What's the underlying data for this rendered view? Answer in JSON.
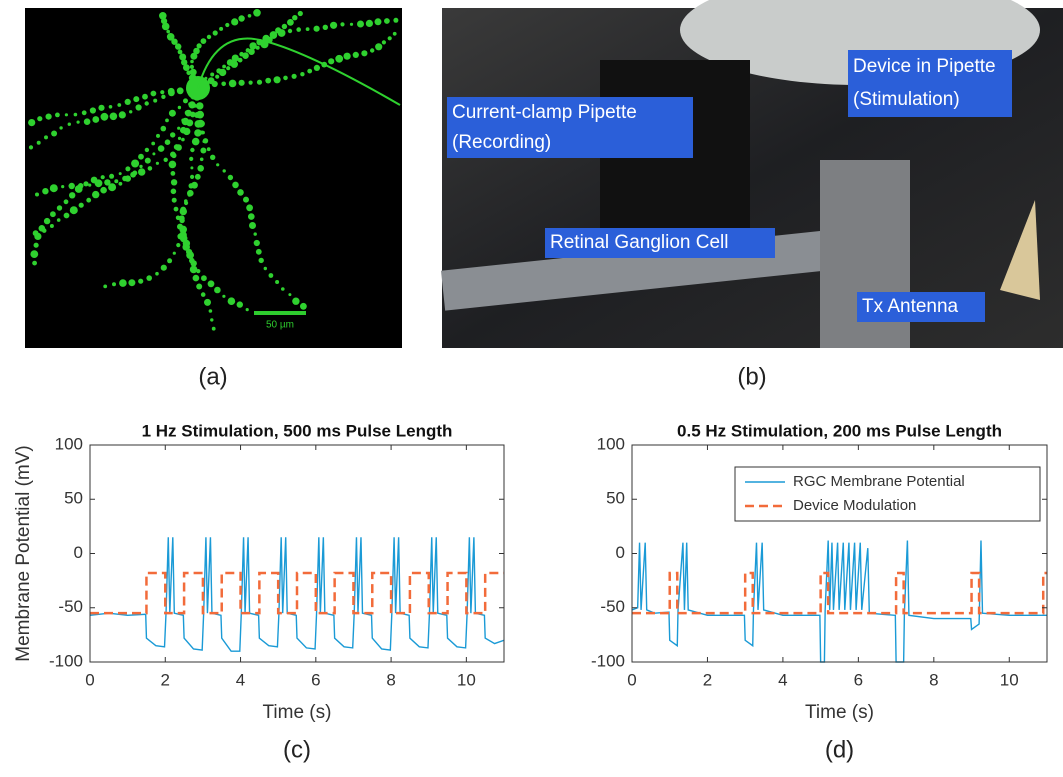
{
  "photo_a": {
    "scale_label": "50 µm",
    "caption": "(a)"
  },
  "photo_b": {
    "labels": [
      [
        "Current-clamp Pipette",
        "(Recording)"
      ],
      [
        "Device in Pipette",
        "(Stimulation)"
      ],
      [
        "Retinal Ganglion Cell"
      ],
      [
        "Tx Antenna"
      ]
    ],
    "caption": "(b)"
  },
  "chart_data": [
    {
      "type": "line",
      "title": "1 Hz Stimulation, 500 ms Pulse Length",
      "ylabel": "Membrane Potential (mV)",
      "xlabel": "Time (s)",
      "caption": "(c)",
      "xlim": [
        0,
        11
      ],
      "xticks": [
        0,
        2,
        4,
        6,
        8,
        10
      ],
      "ylim": [
        -100,
        100
      ],
      "yticks": [
        -100,
        -50,
        0,
        50,
        100
      ],
      "series": [
        {
          "name": "RGC Membrane Potential",
          "color": "#1a9ad6",
          "linestyle": "solid",
          "x": [
            0,
            0.5,
            1.0,
            1.48,
            1.5,
            1.75,
            1.98,
            2.02,
            2.08,
            2.12,
            2.2,
            2.24,
            2.48,
            2.5,
            2.75,
            2.98,
            3.02,
            3.08,
            3.12,
            3.2,
            3.24,
            3.48,
            3.5,
            3.75,
            3.98,
            4.02,
            4.08,
            4.12,
            4.2,
            4.24,
            4.48,
            4.5,
            4.75,
            4.98,
            5.02,
            5.08,
            5.12,
            5.2,
            5.24,
            5.48,
            5.5,
            5.75,
            5.98,
            6.02,
            6.08,
            6.12,
            6.2,
            6.24,
            6.48,
            6.5,
            6.75,
            6.98,
            7.02,
            7.08,
            7.12,
            7.2,
            7.24,
            7.48,
            7.5,
            7.75,
            7.98,
            8.02,
            8.08,
            8.12,
            8.2,
            8.24,
            8.48,
            8.5,
            8.75,
            8.98,
            9.02,
            9.08,
            9.12,
            9.2,
            9.24,
            9.48,
            9.5,
            9.75,
            9.98,
            10.02,
            10.08,
            10.12,
            10.2,
            10.24,
            10.48,
            10.5,
            10.75,
            11
          ],
          "values": [
            -57,
            -55,
            -57,
            -56,
            -78,
            -85,
            -86,
            -55,
            15,
            -55,
            15,
            -55,
            -57,
            -78,
            -88,
            -89,
            -55,
            15,
            -55,
            15,
            -55,
            -57,
            -78,
            -90,
            -90,
            -55,
            15,
            -55,
            15,
            -55,
            -57,
            -78,
            -85,
            -86,
            -55,
            15,
            -55,
            15,
            -55,
            -57,
            -78,
            -87,
            -88,
            -55,
            15,
            -55,
            15,
            -55,
            -57,
            -78,
            -86,
            -87,
            -55,
            15,
            -55,
            15,
            -55,
            -57,
            -78,
            -88,
            -89,
            -55,
            15,
            -55,
            15,
            -55,
            -57,
            -78,
            -86,
            -87,
            -55,
            15,
            -55,
            15,
            -55,
            -57,
            -78,
            -86,
            -87,
            -55,
            15,
            -55,
            15,
            -55,
            -57,
            -78,
            -83,
            -80
          ]
        },
        {
          "name": "Device Modulation",
          "color": "#f26b3a",
          "linestyle": "dashed",
          "x": [
            0,
            1.5,
            1.5,
            2.0,
            2.0,
            2.5,
            2.5,
            3.0,
            3.0,
            3.5,
            3.5,
            4.0,
            4.0,
            4.5,
            4.5,
            5.0,
            5.0,
            5.5,
            5.5,
            6.0,
            6.0,
            6.5,
            6.5,
            7.0,
            7.0,
            7.5,
            7.5,
            8.0,
            8.0,
            8.5,
            8.5,
            9.0,
            9.0,
            9.5,
            9.5,
            10.0,
            10.0,
            10.5,
            10.5,
            11
          ],
          "values": [
            -55,
            -55,
            -18,
            -18,
            -55,
            -55,
            -18,
            -18,
            -55,
            -55,
            -18,
            -18,
            -55,
            -55,
            -18,
            -18,
            -55,
            -55,
            -18,
            -18,
            -55,
            -55,
            -18,
            -18,
            -55,
            -55,
            -18,
            -18,
            -55,
            -55,
            -18,
            -18,
            -55,
            -55,
            -18,
            -18,
            -55,
            -55,
            -18,
            -18
          ]
        }
      ]
    },
    {
      "type": "line",
      "title": "0.5 Hz Stimulation, 200 ms Pulse Length",
      "xlabel": "Time (s)",
      "caption": "(d)",
      "xlim": [
        0,
        11
      ],
      "xticks": [
        0,
        2,
        4,
        6,
        8,
        10
      ],
      "ylim": [
        -100,
        100
      ],
      "yticks": [
        -100,
        -50,
        0,
        50,
        100
      ],
      "legend": "upper right",
      "series": [
        {
          "name": "RGC Membrane Potential",
          "color": "#1a9ad6",
          "linestyle": "solid",
          "x": [
            0,
            0.15,
            0.2,
            0.24,
            0.35,
            0.39,
            0.6,
            0.98,
            1.0,
            1.2,
            1.22,
            1.35,
            1.39,
            1.45,
            1.49,
            2.0,
            2.98,
            3.0,
            3.2,
            3.22,
            3.3,
            3.34,
            3.45,
            3.49,
            4.0,
            4.98,
            5.0,
            5.1,
            5.12,
            5.2,
            5.24,
            5.3,
            5.34,
            5.45,
            5.49,
            5.6,
            5.64,
            5.75,
            5.79,
            5.9,
            5.94,
            6.05,
            6.09,
            6.25,
            6.29,
            6.98,
            7.0,
            7.2,
            7.22,
            7.3,
            7.34,
            8.0,
            8.98,
            9.0,
            9.2,
            9.25,
            9.29,
            10.0,
            11
          ],
          "values": [
            -52,
            -50,
            10,
            -52,
            10,
            -52,
            -55,
            -54,
            -80,
            -85,
            -52,
            10,
            -52,
            10,
            -52,
            -57,
            -57,
            -80,
            -85,
            -52,
            10,
            -52,
            10,
            -52,
            -57,
            -57,
            -100,
            -100,
            -52,
            12,
            -52,
            10,
            -52,
            10,
            -52,
            10,
            -52,
            10,
            -52,
            10,
            -52,
            10,
            -52,
            5,
            -55,
            -57,
            -100,
            -100,
            -55,
            12,
            -57,
            -60,
            -60,
            -70,
            -65,
            12,
            -55,
            -57,
            -57
          ]
        },
        {
          "name": "Device Modulation",
          "color": "#f26b3a",
          "linestyle": "dashed",
          "x": [
            0,
            1.0,
            1.0,
            1.2,
            1.2,
            3.0,
            3.0,
            3.2,
            3.2,
            5.0,
            5.0,
            5.2,
            5.2,
            7.0,
            7.0,
            7.2,
            7.2,
            9.0,
            9.0,
            9.2,
            9.2,
            10.9,
            10.9,
            11
          ],
          "values": [
            -55,
            -55,
            -18,
            -18,
            -55,
            -55,
            -18,
            -18,
            -55,
            -55,
            -18,
            -18,
            -55,
            -55,
            -18,
            -18,
            -55,
            -55,
            -18,
            -18,
            -55,
            -55,
            -18,
            -18
          ]
        }
      ]
    }
  ]
}
